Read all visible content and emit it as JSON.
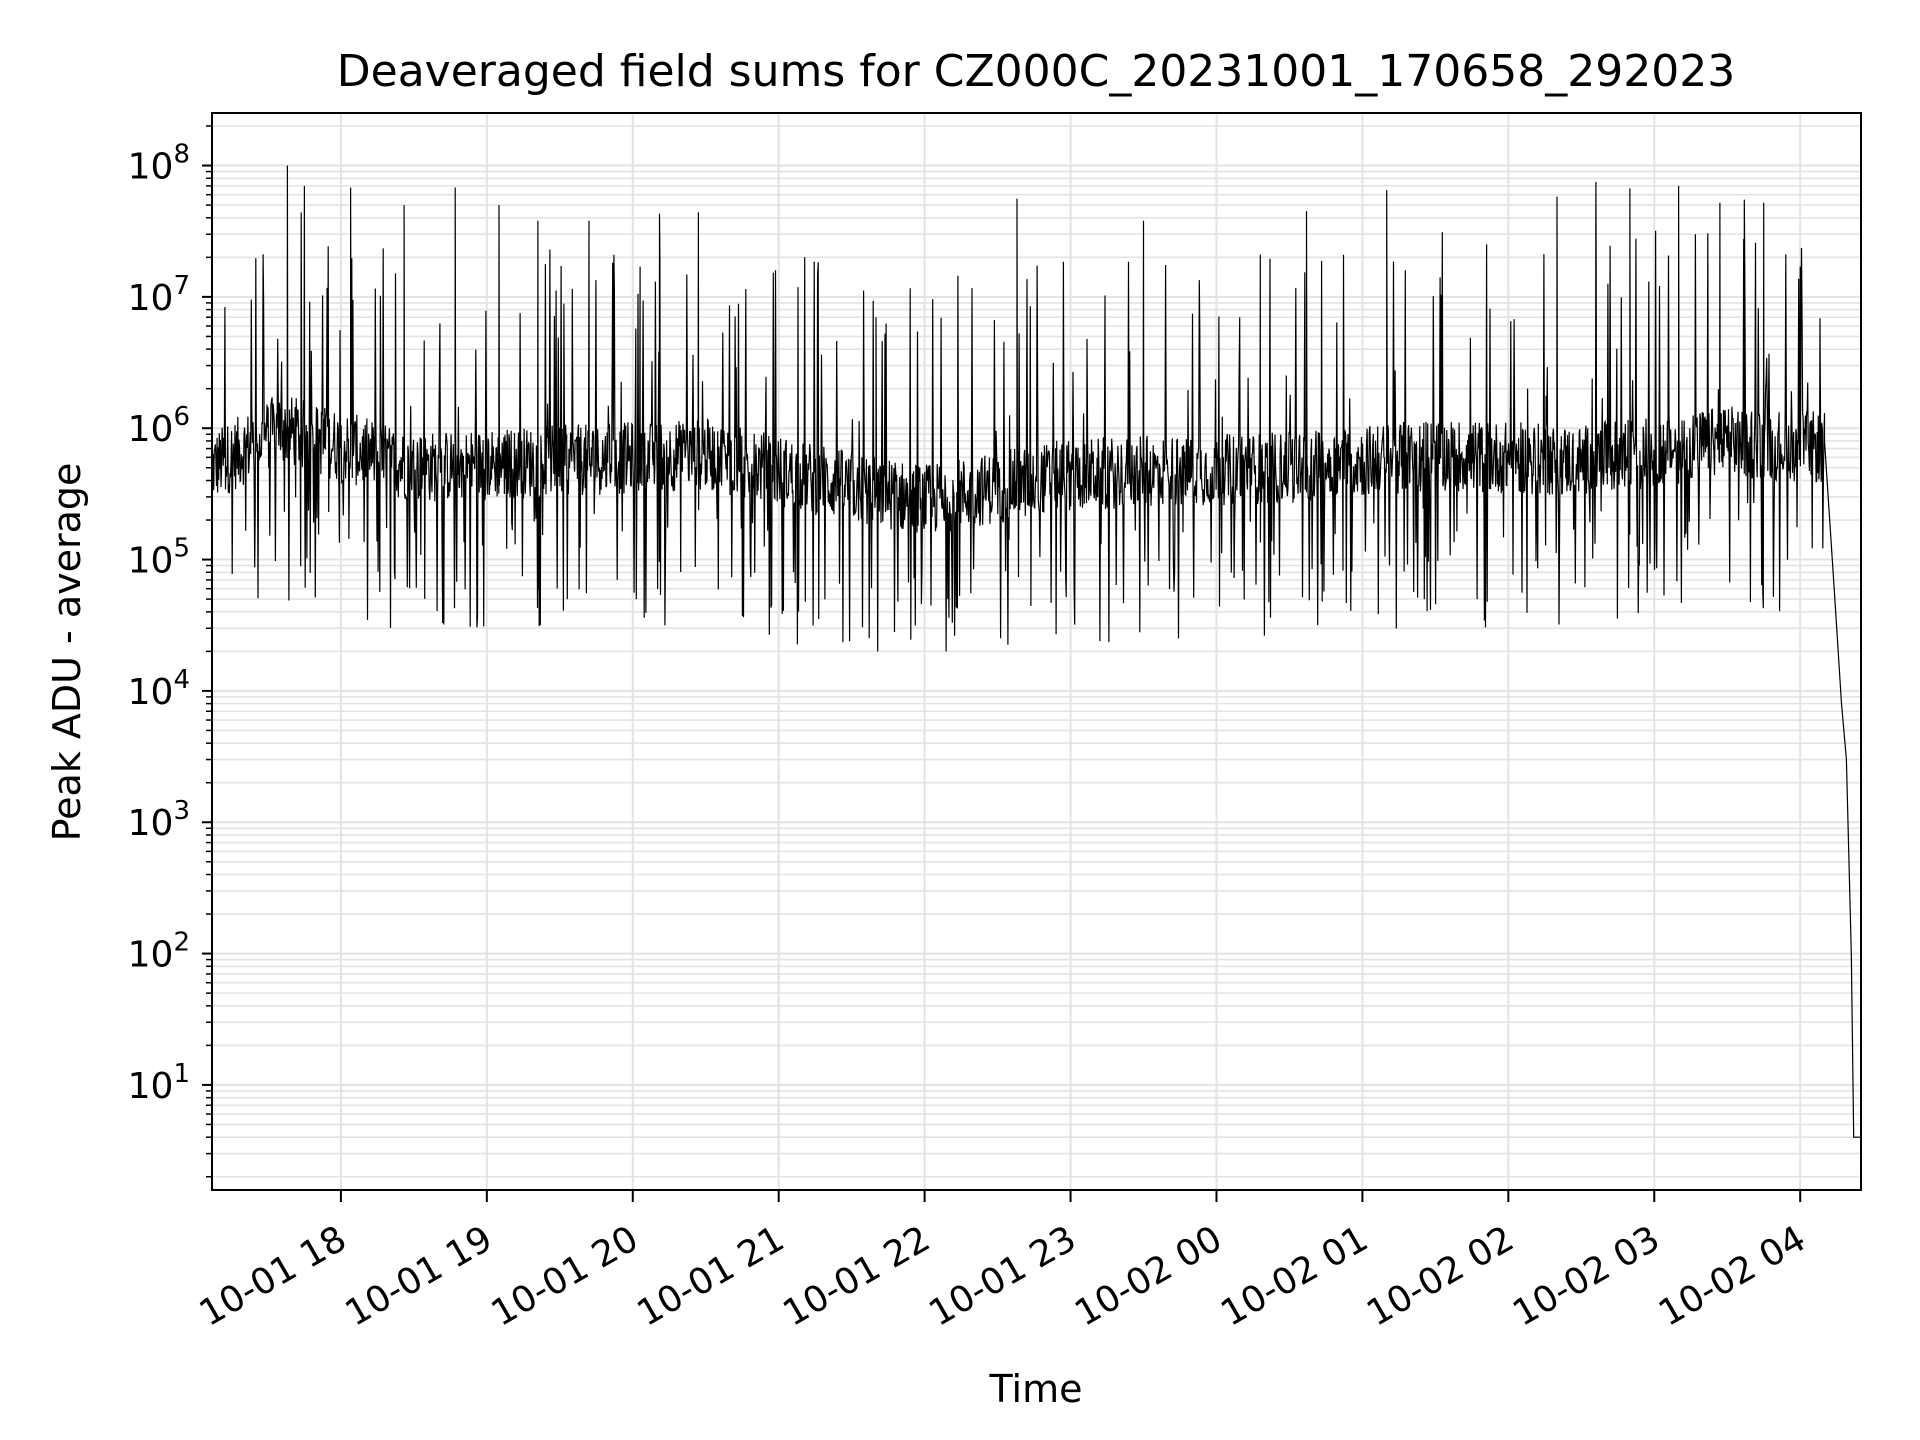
{
  "chart_data": {
    "type": "line",
    "title": "Deaveraged field sums for CZ000C_20231001_170658_292023",
    "xlabel": "Time",
    "ylabel": "Peak ADU - average",
    "yscale": "log",
    "ylim_log10": [
      0.2,
      8.4
    ],
    "xlim": [
      "2023-10-01 17:07",
      "2023-10-02 04:25"
    ],
    "grid": true,
    "line_color": "#000000",
    "grid_color": "#e3e3e3",
    "x_ticks": [
      {
        "time": "2023-10-01 18:00",
        "label": "10-01 18"
      },
      {
        "time": "2023-10-01 19:00",
        "label": "10-01 19"
      },
      {
        "time": "2023-10-01 20:00",
        "label": "10-01 20"
      },
      {
        "time": "2023-10-01 21:00",
        "label": "10-01 21"
      },
      {
        "time": "2023-10-01 22:00",
        "label": "10-01 22"
      },
      {
        "time": "2023-10-01 23:00",
        "label": "10-01 23"
      },
      {
        "time": "2023-10-02 00:00",
        "label": "10-02 00"
      },
      {
        "time": "2023-10-02 01:00",
        "label": "10-02 01"
      },
      {
        "time": "2023-10-02 02:00",
        "label": "10-02 02"
      },
      {
        "time": "2023-10-02 03:00",
        "label": "10-02 03"
      },
      {
        "time": "2023-10-02 04:00",
        "label": "10-02 04"
      }
    ],
    "y_ticks": [
      {
        "exp": 1,
        "base": "10",
        "sup": "1"
      },
      {
        "exp": 2,
        "base": "10",
        "sup": "2"
      },
      {
        "exp": 3,
        "base": "10",
        "sup": "3"
      },
      {
        "exp": 4,
        "base": "10",
        "sup": "4"
      },
      {
        "exp": 5,
        "base": "10",
        "sup": "5"
      },
      {
        "exp": 6,
        "base": "10",
        "sup": "6"
      },
      {
        "exp": 7,
        "base": "10",
        "sup": "7"
      },
      {
        "exp": 8,
        "base": "10",
        "sup": "8"
      }
    ],
    "series": [
      {
        "style": "noisy line; baseline varies with time, frequent spikes up to ~1e8, sharp drop near the end",
        "samples_per_hour": 260,
        "baseline_log10": [
          {
            "time": "2023-10-01 17:07",
            "v": 5.7
          },
          {
            "time": "2023-10-01 17:35",
            "v": 6.0
          },
          {
            "time": "2023-10-01 18:30",
            "v": 5.7
          },
          {
            "time": "2023-10-01 19:30",
            "v": 5.75
          },
          {
            "time": "2023-10-01 20:30",
            "v": 5.8
          },
          {
            "time": "2023-10-01 21:30",
            "v": 5.55
          },
          {
            "time": "2023-10-01 22:00",
            "v": 5.45
          },
          {
            "time": "2023-10-01 23:00",
            "v": 5.65
          },
          {
            "time": "2023-10-02 00:30",
            "v": 5.7
          },
          {
            "time": "2023-10-02 01:30",
            "v": 5.8
          },
          {
            "time": "2023-10-02 02:30",
            "v": 5.75
          },
          {
            "time": "2023-10-02 03:30",
            "v": 5.9
          },
          {
            "time": "2023-10-02 04:10",
            "v": 5.85
          }
        ],
        "spikes": [
          {
            "time": "2023-10-01 17:38",
            "y": 100000000
          },
          {
            "time": "2023-10-01 17:45",
            "y": 70000000
          },
          {
            "time": "2023-10-01 18:04",
            "y": 68000000
          },
          {
            "time": "2023-10-01 18:26",
            "y": 50000000
          },
          {
            "time": "2023-10-01 18:47",
            "y": 68000000
          },
          {
            "time": "2023-10-01 19:05",
            "y": 50000000
          },
          {
            "time": "2023-10-01 19:21",
            "y": 38000000
          },
          {
            "time": "2023-10-01 19:42",
            "y": 38000000
          },
          {
            "time": "2023-10-01 20:03",
            "y": 17000000
          },
          {
            "time": "2023-10-01 20:11",
            "y": 43000000
          },
          {
            "time": "2023-10-01 20:27",
            "y": 44000000
          },
          {
            "time": "2023-10-01 21:40",
            "y": 7000000
          },
          {
            "time": "2023-10-01 22:38",
            "y": 56000000
          },
          {
            "time": "2023-10-01 23:30",
            "y": 38000000
          },
          {
            "time": "2023-10-02 00:18",
            "y": 21000000
          },
          {
            "time": "2023-10-02 00:37",
            "y": 45000000
          },
          {
            "time": "2023-10-02 01:10",
            "y": 65000000
          },
          {
            "time": "2023-10-02 02:20",
            "y": 58000000
          },
          {
            "time": "2023-10-02 02:36",
            "y": 75000000
          },
          {
            "time": "2023-10-02 02:50",
            "y": 67000000
          },
          {
            "time": "2023-10-02 03:10",
            "y": 70000000
          },
          {
            "time": "2023-10-02 03:27",
            "y": 52000000
          },
          {
            "time": "2023-10-02 03:37",
            "y": 55000000
          },
          {
            "time": "2023-10-02 03:45",
            "y": 52000000
          },
          {
            "time": "2023-10-02 04:00",
            "y": 17000000
          }
        ],
        "tail": [
          {
            "time": "2023-10-02 04:10",
            "y": 800000
          },
          {
            "time": "2023-10-02 04:14",
            "y": 60000
          },
          {
            "time": "2023-10-02 04:17",
            "y": 8000
          },
          {
            "time": "2023-10-02 04:19",
            "y": 3000
          },
          {
            "time": "2023-10-02 04:21",
            "y": 100
          },
          {
            "time": "2023-10-02 04:22",
            "y": 4
          },
          {
            "time": "2023-10-02 04:25",
            "y": 4
          }
        ]
      }
    ]
  }
}
